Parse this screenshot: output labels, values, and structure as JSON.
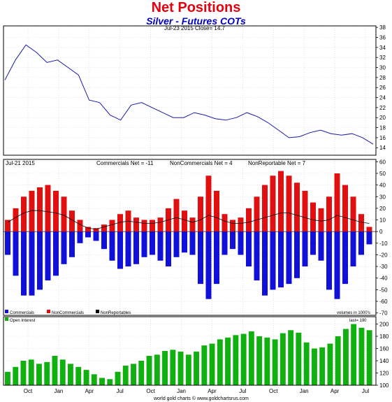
{
  "title": "Net Positions",
  "subtitle": "Silver - Futures COTs",
  "chart_data": [
    {
      "type": "line",
      "panel": "price",
      "header": "Jul-23 2015   Close= 14.7",
      "yticks": [
        14,
        16,
        18,
        20,
        22,
        24,
        26,
        28,
        30,
        32,
        34,
        36,
        38
      ],
      "ylim": [
        12.5,
        38.3
      ],
      "x": [
        "2012-08",
        "2012-09",
        "2012-10",
        "2012-11",
        "2012-12",
        "2013-01",
        "2013-02",
        "2013-03",
        "2013-04",
        "2013-05",
        "2013-06",
        "2013-07",
        "2013-08",
        "2013-09",
        "2013-10",
        "2013-11",
        "2013-12",
        "2014-01",
        "2014-02",
        "2014-03",
        "2014-04",
        "2014-05",
        "2014-06",
        "2014-07",
        "2014-08",
        "2014-09",
        "2014-10",
        "2014-11",
        "2014-12",
        "2015-01",
        "2015-02",
        "2015-03",
        "2015-04",
        "2015-05",
        "2015-06",
        "2015-07"
      ],
      "values": [
        27.5,
        31.5,
        34.5,
        33.0,
        31.0,
        31.5,
        30.0,
        28.5,
        23.5,
        23.0,
        20.5,
        19.5,
        22.5,
        23.0,
        22.0,
        21.0,
        20.0,
        20.0,
        21.0,
        20.5,
        19.8,
        19.5,
        20.0,
        21.0,
        20.2,
        19.0,
        17.5,
        16.0,
        16.2,
        17.0,
        17.5,
        16.8,
        16.5,
        16.8,
        16.0,
        14.7
      ]
    },
    {
      "type": "bar",
      "panel": "cot",
      "header_left": "Jul-21 2015",
      "header_texts": [
        "Commercials Net = -11",
        "NonCommercials Net = 4",
        "NonReportable Net = 7"
      ],
      "yticks": [
        -70,
        -60,
        -50,
        -40,
        -30,
        -20,
        -10,
        0,
        10,
        20,
        30,
        40,
        50,
        60
      ],
      "ylim": [
        -72,
        62
      ],
      "legend": [
        "Commercials",
        "NonCommercials",
        "NonReportables"
      ],
      "volume_note": "volumes in 1000's",
      "series": [
        {
          "name": "Commercials",
          "color": "#1010d8",
          "values": [
            -20,
            -38,
            -55,
            -55,
            -50,
            -42,
            -38,
            -28,
            -22,
            -10,
            -5,
            -8,
            -15,
            -25,
            -32,
            -30,
            -28,
            -22,
            -20,
            -25,
            -30,
            -22,
            -18,
            -20,
            -45,
            -58,
            -45,
            -20,
            -15,
            -20,
            -30,
            -42,
            -55,
            -50,
            -48,
            -45,
            -40,
            -30,
            -20,
            -25,
            -50,
            -58,
            -45,
            -30,
            -20,
            -11
          ]
        },
        {
          "name": "NonCommercials",
          "color": "#e01010",
          "values": [
            10,
            20,
            30,
            35,
            38,
            40,
            35,
            30,
            18,
            10,
            4,
            3,
            6,
            10,
            15,
            18,
            12,
            10,
            10,
            12,
            20,
            28,
            18,
            12,
            30,
            48,
            35,
            15,
            10,
            12,
            20,
            30,
            40,
            48,
            52,
            48,
            42,
            35,
            25,
            20,
            30,
            50,
            40,
            30,
            15,
            4
          ]
        },
        {
          "name": "NonReportables",
          "color": "#000000",
          "values": [
            8,
            12,
            16,
            18,
            18,
            17,
            16,
            14,
            10,
            6,
            3,
            2,
            4,
            6,
            8,
            9,
            8,
            7,
            7,
            8,
            10,
            12,
            10,
            8,
            10,
            14,
            12,
            9,
            7,
            7,
            8,
            10,
            12,
            14,
            16,
            16,
            14,
            12,
            10,
            9,
            10,
            14,
            12,
            10,
            8,
            7
          ]
        }
      ]
    },
    {
      "type": "bar",
      "panel": "open_interest",
      "legend": [
        "Open Interest"
      ],
      "last_note": "last= 190",
      "yticks": [
        100,
        120,
        140,
        160,
        180,
        200
      ],
      "ylim": [
        100,
        212
      ],
      "series": [
        {
          "name": "Open Interest",
          "color": "#10b010",
          "values": [
            122,
            130,
            140,
            142,
            135,
            138,
            148,
            142,
            135,
            130,
            125,
            118,
            112,
            110,
            122,
            132,
            135,
            140,
            148,
            150,
            156,
            158,
            155,
            150,
            155,
            165,
            168,
            175,
            178,
            182,
            184,
            188,
            180,
            178,
            175,
            185,
            190,
            186,
            170,
            160,
            162,
            168,
            180,
            192,
            200,
            194,
            190
          ]
        }
      ]
    }
  ],
  "xticks": [
    "Oct",
    "Jan",
    "Apr",
    "Jul",
    "Oct",
    "Jan",
    "Apr",
    "Jul",
    "Oct",
    "Jan",
    "Apr",
    "Jul"
  ],
  "footer": "world gold charts ©  www.goldchartsrus.com"
}
